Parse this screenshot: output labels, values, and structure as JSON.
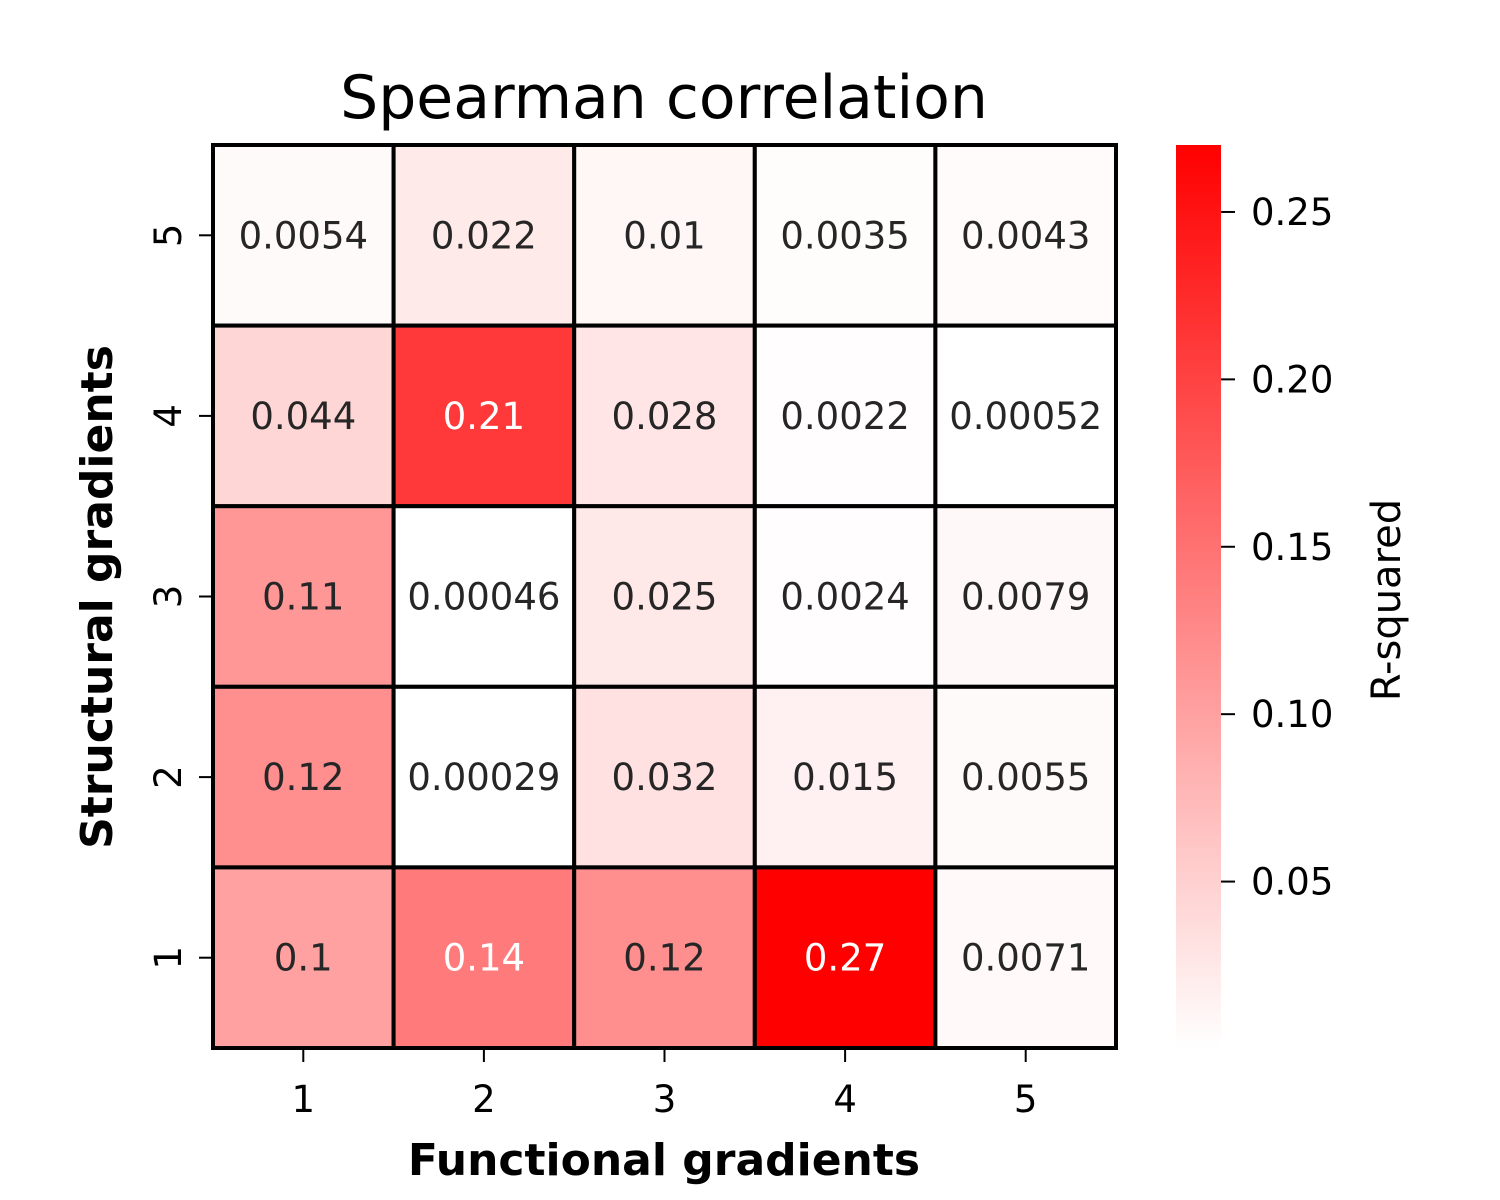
{
  "chart_data": {
    "type": "heatmap",
    "title": "Spearman correlation",
    "xlabel": "Functional gradients",
    "ylabel": "Structural gradients",
    "x_categories": [
      "1",
      "2",
      "3",
      "4",
      "5"
    ],
    "y_categories": [
      "1",
      "2",
      "3",
      "4",
      "5"
    ],
    "rows": [
      {
        "y": "5",
        "values": [
          0.0054,
          0.022,
          0.01,
          0.0035,
          0.0043
        ],
        "labels": [
          "0.0054",
          "0.022",
          "0.01",
          "0.0035",
          "0.0043"
        ]
      },
      {
        "y": "4",
        "values": [
          0.044,
          0.21,
          0.028,
          0.0022,
          0.00052
        ],
        "labels": [
          "0.044",
          "0.21",
          "0.028",
          "0.0022",
          "0.00052"
        ]
      },
      {
        "y": "3",
        "values": [
          0.11,
          0.00046,
          0.025,
          0.0024,
          0.0079
        ],
        "labels": [
          "0.11",
          "0.00046",
          "0.025",
          "0.0024",
          "0.0079"
        ]
      },
      {
        "y": "2",
        "values": [
          0.12,
          0.00029,
          0.032,
          0.015,
          0.0055
        ],
        "labels": [
          "0.12",
          "0.00029",
          "0.032",
          "0.015",
          "0.0055"
        ]
      },
      {
        "y": "1",
        "values": [
          0.1,
          0.14,
          0.12,
          0.27,
          0.0071
        ],
        "labels": [
          "0.1",
          "0.14",
          "0.12",
          "0.27",
          "0.0071"
        ]
      }
    ],
    "colorbar": {
      "label": "R-squared",
      "range": [
        0.00029,
        0.27
      ],
      "ticks": [
        0.05,
        0.1,
        0.15,
        0.2,
        0.25
      ],
      "tick_labels": [
        "0.05",
        "0.10",
        "0.15",
        "0.20",
        "0.25"
      ],
      "low_color": "#ffffff",
      "high_color": "#ff0000"
    },
    "annotation_colors": {
      "dark": "#262626",
      "light": "#ffffff"
    },
    "grid": false,
    "legend": "colorbar-right"
  }
}
